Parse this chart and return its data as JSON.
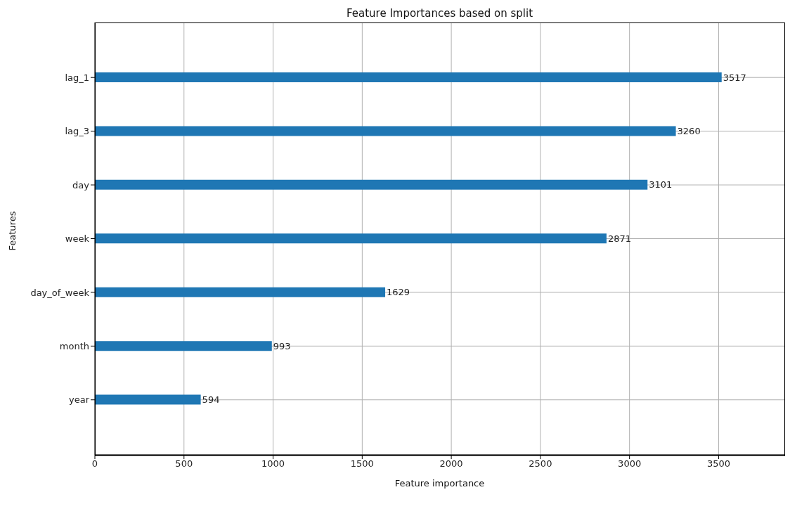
{
  "chart_data": {
    "type": "bar",
    "orientation": "horizontal",
    "title": "Feature Importances based on split",
    "xlabel": "Feature importance",
    "ylabel": "Features",
    "categories": [
      "lag_1",
      "lag_3",
      "day",
      "week",
      "day_of_week",
      "month",
      "year"
    ],
    "values": [
      3517,
      3260,
      3101,
      2871,
      1629,
      993,
      594
    ],
    "color": "#1f77b4",
    "xlim": [
      0,
      3869
    ],
    "xticks": [
      0,
      500,
      1000,
      1500,
      2000,
      2500,
      3000,
      3500
    ],
    "grid": true,
    "data_labels": true
  }
}
